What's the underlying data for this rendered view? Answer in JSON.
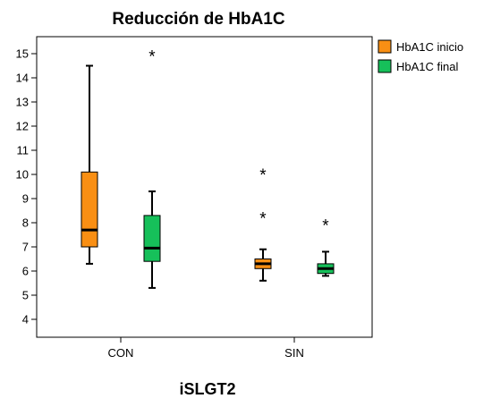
{
  "chart_data": {
    "type": "boxplot",
    "title": "Reducción de HbA1C",
    "xlabel": "iSLGT2",
    "ylabel": "",
    "categories": [
      "CON",
      "SIN"
    ],
    "ylim": [
      3.5,
      15.6
    ],
    "yticks": [
      4,
      5,
      6,
      7,
      8,
      9,
      10,
      11,
      12,
      13,
      14,
      15
    ],
    "grid": false,
    "legend_position": "top-right",
    "series": [
      {
        "name": "HbA1C inicio",
        "color": "#f98f14",
        "boxes": [
          {
            "category": "CON",
            "min": 6.3,
            "q1": 7.0,
            "median": 7.7,
            "q3": 10.1,
            "max": 14.5,
            "outliers": []
          },
          {
            "category": "SIN",
            "min": 5.6,
            "q1": 6.1,
            "median": 6.3,
            "q3": 6.5,
            "max": 6.9,
            "outliers": [
              8.2,
              10.0
            ]
          }
        ]
      },
      {
        "name": "HbA1C final",
        "color": "#16c05a",
        "boxes": [
          {
            "category": "CON",
            "min": 5.3,
            "q1": 6.4,
            "median": 6.95,
            "q3": 8.3,
            "max": 9.3,
            "outliers": [
              14.9
            ]
          },
          {
            "category": "SIN",
            "min": 5.8,
            "q1": 5.9,
            "median": 6.1,
            "q3": 6.3,
            "max": 6.8,
            "outliers": [
              7.9
            ]
          }
        ]
      }
    ]
  }
}
